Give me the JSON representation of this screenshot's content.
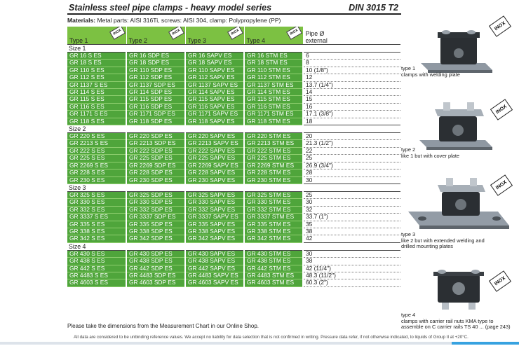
{
  "header": {
    "title": "Stainless steel pipe clamps - heavy model series",
    "standard": "DIN 3015 T2"
  },
  "materials": {
    "label": "Materials:",
    "text": "Metal parts: AISI 316Ti, screws: AISI 304, clamp: Polypropylene (PP)"
  },
  "table": {
    "columns": [
      "Type 1",
      "Type 2",
      "Type 3",
      "Type 4"
    ],
    "inox_badge": "INOX",
    "pipe_header_line1": "Pipe Ø",
    "pipe_header_line2": "external",
    "groups": [
      {
        "name": "Size 1",
        "rows": [
          [
            "GR 16 S ES",
            "GR 16 SDP ES",
            "GR 16 SAPV ES",
            "GR 16 STM ES",
            "6"
          ],
          [
            "GR 18 S ES",
            "GR 18 SDP ES",
            "GR 18 SAPV ES",
            "GR 18 STM ES",
            "8"
          ],
          [
            "GR 110 S ES",
            "GR 110 SDP ES",
            "GR 110 SAPV ES",
            "GR 110 STM ES",
            "10 (1/8\")"
          ],
          [
            "GR 112 S ES",
            "GR 112 SDP ES",
            "GR 112 SAPV ES",
            "GR 112 STM ES",
            "12"
          ],
          [
            "GR 1137 S ES",
            "GR 1137 SDP ES",
            "GR 1137 SAPV ES",
            "GR 1137 STM ES",
            "13.7 (1/4\")"
          ],
          [
            "GR 114 S ES",
            "GR 114 SDP ES",
            "GR 114 SAPV ES",
            "GR 114 STM ES",
            "14"
          ],
          [
            "GR 115 S ES",
            "GR 115 SDP ES",
            "GR 115 SAPV ES",
            "GR 115 STM ES",
            "15"
          ],
          [
            "GR 116 S ES",
            "GR 116 SDP ES",
            "GR 116 SAPV ES",
            "GR 116 STM ES",
            "16"
          ],
          [
            "GR 1171 S ES",
            "GR 1171 SDP ES",
            "GR 1171 SAPV ES",
            "GR 1171 STM ES",
            "17.1 (3/8\")"
          ],
          [
            "GR 118 S ES",
            "GR 118 SDP ES",
            "GR 118 SAPV ES",
            "GR 118 STM ES",
            "18"
          ]
        ]
      },
      {
        "name": "Size 2",
        "rows": [
          [
            "GR 220 S ES",
            "GR 220 SDP ES",
            "GR 220 SAPV ES",
            "GR 220 STM ES",
            "20"
          ],
          [
            "GR 2213 S ES",
            "GR 2213 SDP ES",
            "GR 2213 SAPV ES",
            "GR 2213 STM ES",
            "21.3 (1/2\")"
          ],
          [
            "GR 222 S ES",
            "GR 222 SDP ES",
            "GR 222 SAPV ES",
            "GR 222 STM ES",
            "22"
          ],
          [
            "GR 225 S ES",
            "GR 225 SDP ES",
            "GR 225 SAPV ES",
            "GR 225 STM ES",
            "25"
          ],
          [
            "GR 2269 S ES",
            "GR 2269 SDP ES",
            "GR 2269 SAPV ES",
            "GR 2269 STM ES",
            "26.9 (3/4\")"
          ],
          [
            "GR 228 S ES",
            "GR 228 SDP ES",
            "GR 228 SAPV ES",
            "GR 228 STM ES",
            "28"
          ],
          [
            "GR 230 S ES",
            "GR 230 SDP ES",
            "GR 230 SAPV ES",
            "GR 230 STM ES",
            "30"
          ]
        ]
      },
      {
        "name": "Size 3",
        "rows": [
          [
            "GR 325 S ES",
            "GR 325 SDP ES",
            "GR 325 SAPV ES",
            "GR 325 STM ES",
            "25"
          ],
          [
            "GR 330 S ES",
            "GR 330 SDP ES",
            "GR 330 SAPV ES",
            "GR 330 STM ES",
            "30"
          ],
          [
            "GR 332 S ES",
            "GR 332 SDP ES",
            "GR 332 SAPV ES",
            "GR 332 STM ES",
            "32"
          ],
          [
            "GR 3337 S ES",
            "GR 3337 SDP ES",
            "GR 3337 SAPV ES",
            "GR 3337 STM ES",
            "33.7 (1\")"
          ],
          [
            "GR 335 S ES",
            "GR 335 SDP ES",
            "GR 335 SAPV ES",
            "GR 335 STM ES",
            "35"
          ],
          [
            "GR 338 S ES",
            "GR 338 SDP ES",
            "GR 338 SAPV ES",
            "GR 338 STM ES",
            "38"
          ],
          [
            "GR 342 S ES",
            "GR 342 SDP ES",
            "GR 342 SAPV ES",
            "GR 342 STM ES",
            "42"
          ]
        ]
      },
      {
        "name": "Size 4",
        "rows": [
          [
            "GR 430 S ES",
            "GR 430 SDP ES",
            "GR 430 SAPV ES",
            "GR 430 STM ES",
            "30"
          ],
          [
            "GR 438 S ES",
            "GR 438 SDP ES",
            "GR 438 SAPV ES",
            "GR 438 STM ES",
            "38"
          ],
          [
            "GR 442 S ES",
            "GR 442 SDP ES",
            "GR 442 SAPV ES",
            "GR 442 STM ES",
            "42 (11/4\")"
          ],
          [
            "GR 4483 S ES",
            "GR 4483 SDP ES",
            "GR 4483 SAPV ES",
            "GR 4483 STM ES",
            "48.3 (11/2\")"
          ],
          [
            "GR 4603 S ES",
            "GR 4603 SDP ES",
            "GR 4603 SAPV ES",
            "GR 4603 STM ES",
            "60.3 (2\")"
          ]
        ]
      }
    ]
  },
  "types": [
    {
      "label": "type 1\nclamps with welding plate",
      "icon": "clamp-welding-plate-photo"
    },
    {
      "label": "type 2\nlike 1 but with cover plate",
      "icon": "clamp-cover-plate-photo"
    },
    {
      "label": "type 3\nlike 2 but with extended welding and\ndrilled mounting plates",
      "icon": "clamp-mounting-plate-photo"
    },
    {
      "label": "type 4\nclamps with carrier rail nuts KMA type to\nassemble on C carrier rails TS 40 ... (page 243)",
      "icon": "clamp-carrier-rail-photo"
    }
  ],
  "inox_tag": "INOX",
  "note": "Please take the dimensions from the Measurement Chart in our Online Shop.",
  "footer": "All data are considered to be unbinding reference values. We accept no liability for data selection that is not confirmed in writing. Pressure data refer, if not otherwise indicated, to liquids of Group II at +20°C.",
  "colors": {
    "green_dark": "#4fa53b",
    "green_light": "#7cc142",
    "accent": "#37a2e0"
  }
}
